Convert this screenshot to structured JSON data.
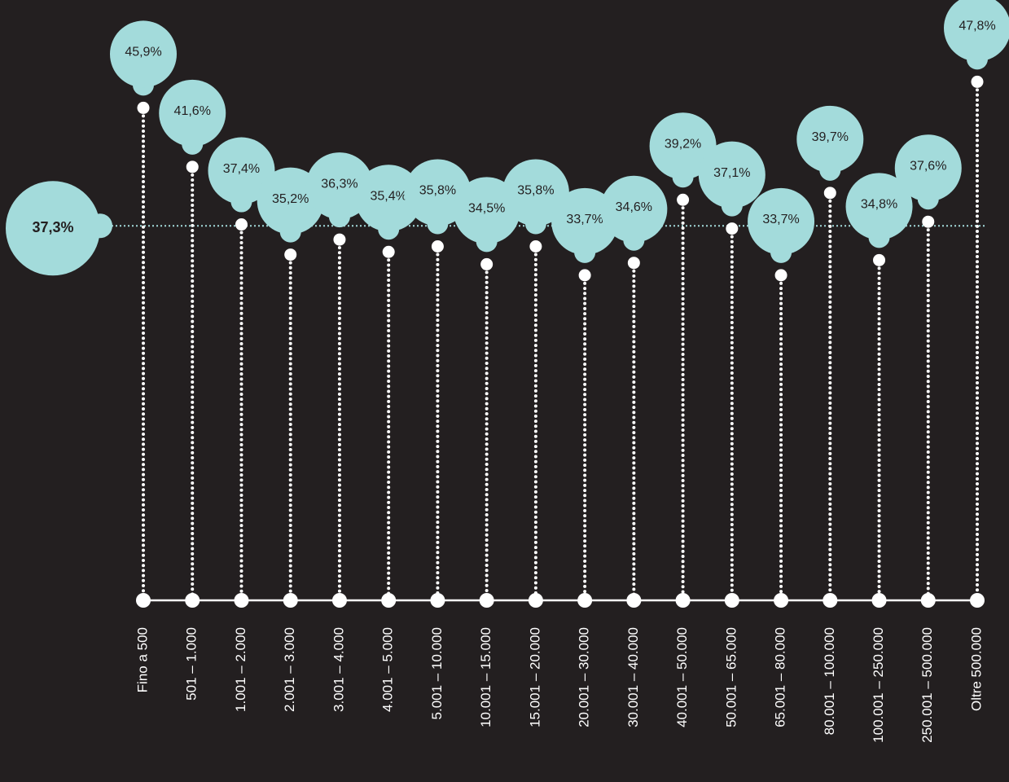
{
  "chart_data": {
    "type": "lollipop",
    "categories": [
      "Fino a 500",
      "501 – 1.000",
      "1.001 – 2.000",
      "2.001 – 3.000",
      "3.001 – 4.000",
      "4.001 – 5.000",
      "5.001 – 10.000",
      "10.001 – 15.000",
      "15.001 – 20.000",
      "20.001 – 30.000",
      "30.001 – 40.000",
      "40.001 – 50.000",
      "50.001 – 65.000",
      "65.001 – 80.000",
      "80.001 – 100.000",
      "100.001 – 250.000",
      "250.001 – 500.000",
      "Oltre 500.000"
    ],
    "values": [
      45.9,
      41.6,
      37.4,
      35.2,
      36.3,
      35.4,
      35.8,
      34.5,
      35.8,
      33.7,
      34.6,
      39.2,
      37.1,
      33.7,
      39.7,
      34.8,
      37.6,
      47.8
    ],
    "value_labels": [
      "45,9%",
      "41,6%",
      "37,4%",
      "35,2%",
      "36,3%",
      "35,4%",
      "35,8%",
      "34,5%",
      "35,8%",
      "33,7%",
      "34,6%",
      "39,2%",
      "37,1%",
      "33,7%",
      "39,7%",
      "34,8%",
      "37,6%",
      "47,8%"
    ],
    "reference": {
      "value": 37.3,
      "label": "37,3%"
    },
    "color": "#a3dbdb",
    "ylim": [
      10,
      54
    ]
  }
}
